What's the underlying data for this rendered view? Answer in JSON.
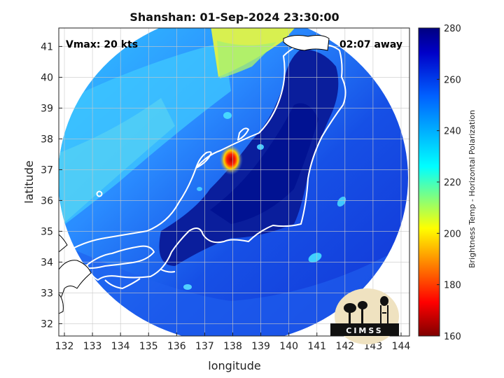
{
  "chart_data": {
    "type": "heatmap",
    "title": "Shanshan: 01-Sep-2024 23:30:00",
    "xlabel": "longitude",
    "ylabel": "latitude",
    "xlim": [
      131.8,
      144.3
    ],
    "ylim": [
      31.6,
      41.6
    ],
    "xticks": [
      132,
      133,
      134,
      135,
      136,
      137,
      138,
      139,
      140,
      141,
      142,
      143,
      144
    ],
    "yticks": [
      32,
      33,
      34,
      35,
      36,
      37,
      38,
      39,
      40,
      41
    ],
    "grid": true,
    "annotations": {
      "vmax": "Vmax: 20 kts",
      "away": "02:07 away"
    },
    "colorbar": {
      "label": "Brightness Temp - Horizontal Polarization",
      "range": [
        160,
        280
      ],
      "ticks": [
        160,
        180,
        200,
        220,
        240,
        260,
        280
      ],
      "colormap": "jet"
    },
    "logo": "CIMSS"
  }
}
